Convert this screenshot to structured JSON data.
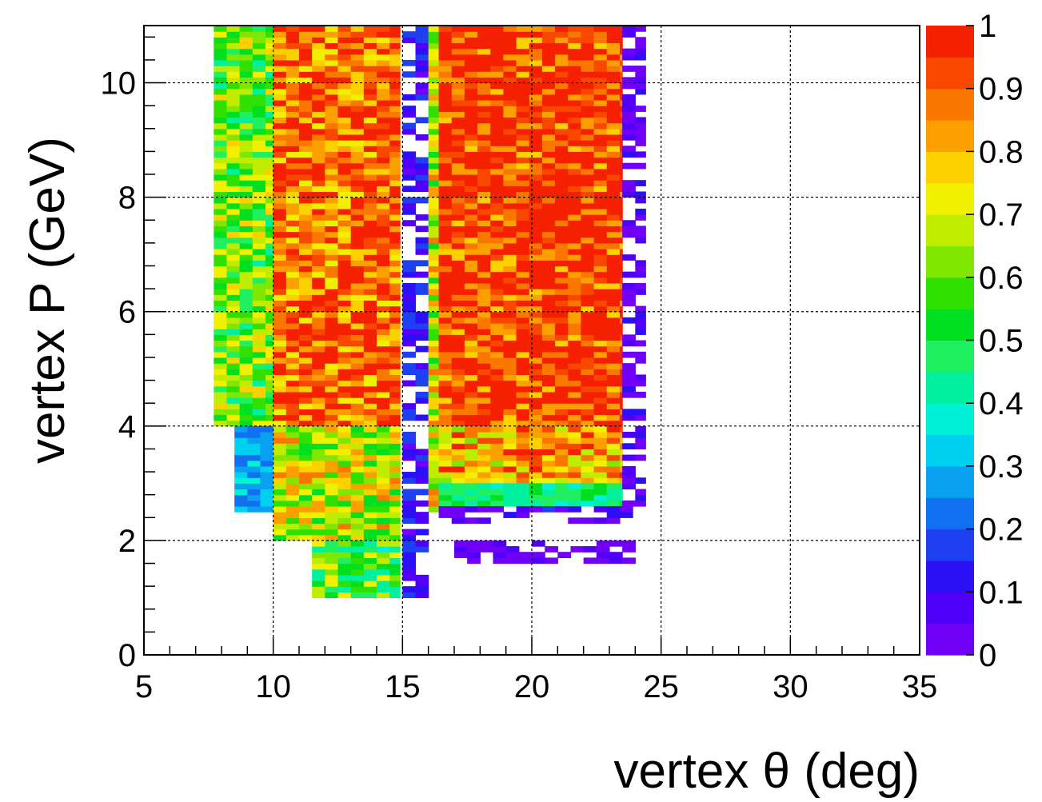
{
  "chart_data": {
    "type": "heatmap",
    "title": "",
    "xlabel": "vertex θ (deg)",
    "ylabel": "vertex P (GeV)",
    "xlim": [
      5,
      35
    ],
    "ylim": [
      0,
      11
    ],
    "xticks": [
      "5",
      "10",
      "15",
      "20",
      "25",
      "30",
      "35"
    ],
    "yticks": [
      "0",
      "2",
      "4",
      "6",
      "8",
      "10"
    ],
    "grid": true,
    "colorbar": {
      "range": [
        0,
        1
      ],
      "ticks": [
        "0",
        "0.1",
        "0.2",
        "0.3",
        "0.4",
        "0.5",
        "0.6",
        "0.7",
        "0.8",
        "0.9",
        "1"
      ],
      "palette": [
        "#7000f8",
        "#5000f8",
        "#2b10f5",
        "#1e40f0",
        "#1070f0",
        "#0aa0f0",
        "#00d0f0",
        "#00f0d8",
        "#00f0a0",
        "#20f060",
        "#00e020",
        "#30e000",
        "#80e800",
        "#c0ec00",
        "#f0f000",
        "#fdd000",
        "#fca000",
        "#fa7800",
        "#f84800",
        "#f42000"
      ]
    },
    "regions": [
      {
        "theta": [
          7.7,
          10.0
        ],
        "p": [
          4.0,
          11.0
        ],
        "value": 0.6
      },
      {
        "theta": [
          8.5,
          10.0
        ],
        "p": [
          2.5,
          4.0
        ],
        "value": 0.3
      },
      {
        "theta": [
          10.0,
          12.5
        ],
        "p": [
          4.0,
          11.0
        ],
        "value": 0.88
      },
      {
        "theta": [
          12.5,
          14.9
        ],
        "p": [
          4.0,
          11.0
        ],
        "value": 0.9
      },
      {
        "theta": [
          10.0,
          14.9
        ],
        "p": [
          2.0,
          4.0
        ],
        "value": 0.7
      },
      {
        "theta": [
          11.5,
          14.9
        ],
        "p": [
          1.0,
          2.0
        ],
        "value": 0.55
      },
      {
        "theta": [
          15.0,
          16.0
        ],
        "p": [
          1.0,
          11.0
        ],
        "value": 0.12
      },
      {
        "theta": [
          16.0,
          16.4
        ],
        "p": [
          2.5,
          11.0
        ],
        "value": 0.7
      },
      {
        "theta": [
          16.4,
          23.5
        ],
        "p": [
          4.0,
          11.0
        ],
        "value": 0.95
      },
      {
        "theta": [
          16.4,
          23.5
        ],
        "p": [
          3.0,
          4.0
        ],
        "value": 0.82
      },
      {
        "theta": [
          16.4,
          23.5
        ],
        "p": [
          2.6,
          3.0
        ],
        "value": 0.45
      },
      {
        "theta": [
          16.4,
          24.4
        ],
        "p": [
          2.3,
          2.6
        ],
        "value": 0.08
      },
      {
        "theta": [
          23.5,
          24.4
        ],
        "p": [
          2.6,
          11.0
        ],
        "value": 0.05
      },
      {
        "theta": [
          17.0,
          24.0
        ],
        "p": [
          1.6,
          2.0
        ],
        "value": 0.02
      }
    ]
  }
}
